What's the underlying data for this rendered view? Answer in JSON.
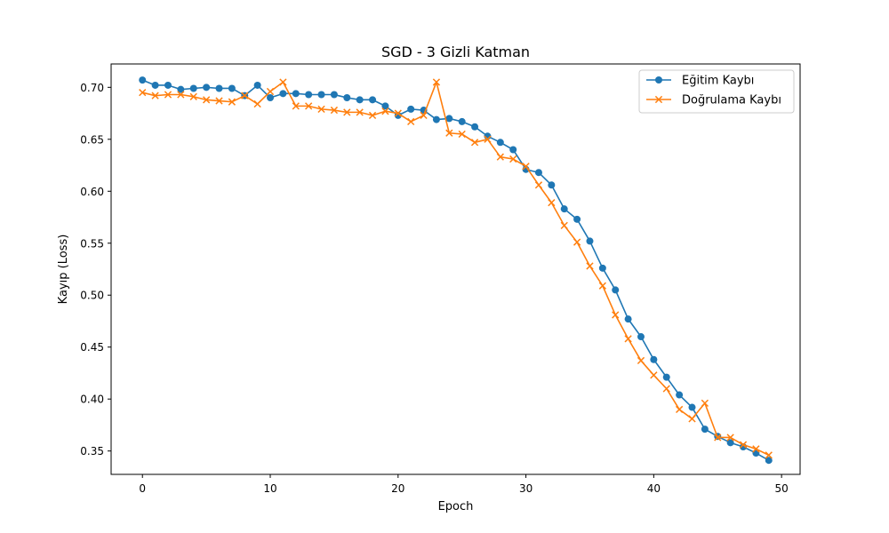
{
  "chart_data": {
    "type": "line",
    "title": "SGD - 3 Gizli Katman",
    "xlabel": "Epoch",
    "ylabel": "Kayıp (Loss)",
    "xlim": [
      -2.45,
      51.45
    ],
    "ylim": [
      0.3275,
      0.7225
    ],
    "xticks": [
      0,
      10,
      20,
      30,
      40,
      50
    ],
    "yticks": [
      0.35,
      0.4,
      0.45,
      0.5,
      0.55,
      0.6,
      0.65,
      0.7
    ],
    "ytick_labels": [
      "0.35",
      "0.40",
      "0.45",
      "0.50",
      "0.55",
      "0.60",
      "0.65",
      "0.70"
    ],
    "grid": false,
    "legend_position": "top-right",
    "x": [
      0,
      1,
      2,
      3,
      4,
      5,
      6,
      7,
      8,
      9,
      10,
      11,
      12,
      13,
      14,
      15,
      16,
      17,
      18,
      19,
      20,
      21,
      22,
      23,
      24,
      25,
      26,
      27,
      28,
      29,
      30,
      31,
      32,
      33,
      34,
      35,
      36,
      37,
      38,
      39,
      40,
      41,
      42,
      43,
      44,
      45,
      46,
      47,
      48,
      49
    ],
    "series": [
      {
        "name": "Eğitim Kaybı",
        "color": "#1f77b4",
        "marker": "circle",
        "values": [
          0.707,
          0.702,
          0.702,
          0.698,
          0.699,
          0.7,
          0.699,
          0.699,
          0.692,
          0.702,
          0.69,
          0.694,
          0.694,
          0.693,
          0.693,
          0.693,
          0.69,
          0.688,
          0.688,
          0.682,
          0.673,
          0.679,
          0.678,
          0.669,
          0.67,
          0.667,
          0.662,
          0.653,
          0.647,
          0.64,
          0.621,
          0.618,
          0.606,
          0.583,
          0.573,
          0.552,
          0.526,
          0.505,
          0.477,
          0.46,
          0.438,
          0.421,
          0.404,
          0.392,
          0.371,
          0.364,
          0.358,
          0.354,
          0.348,
          0.341
        ]
      },
      {
        "name": "Doğrulama Kaybı",
        "color": "#ff7f0e",
        "marker": "x",
        "values": [
          0.695,
          0.692,
          0.693,
          0.693,
          0.691,
          0.688,
          0.687,
          0.686,
          0.692,
          0.684,
          0.696,
          0.705,
          0.682,
          0.682,
          0.679,
          0.678,
          0.676,
          0.676,
          0.673,
          0.677,
          0.675,
          0.667,
          0.673,
          0.705,
          0.656,
          0.655,
          0.647,
          0.65,
          0.633,
          0.631,
          0.624,
          0.606,
          0.589,
          0.567,
          0.551,
          0.528,
          0.509,
          0.481,
          0.458,
          0.437,
          0.423,
          0.41,
          0.39,
          0.381,
          0.396,
          0.363,
          0.363,
          0.356,
          0.352,
          0.346
        ]
      }
    ]
  }
}
